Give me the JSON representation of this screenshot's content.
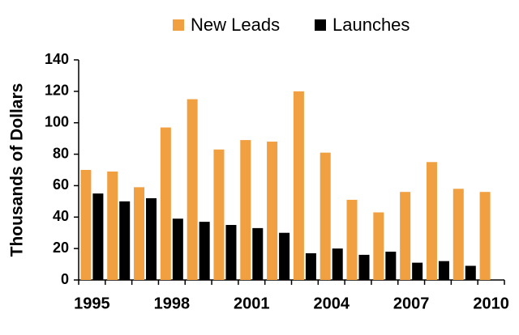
{
  "chart_data": {
    "type": "bar",
    "ylabel": "Thousands of Dollars",
    "categories": [
      "1995",
      null,
      null,
      "1998",
      null,
      null,
      "2001",
      null,
      null,
      "2004",
      null,
      null,
      "2007",
      null,
      null,
      "2010"
    ],
    "series": [
      {
        "name": "New Leads",
        "color": "#f0a040",
        "values": [
          70,
          69,
          59,
          97,
          115,
          83,
          89,
          88,
          120,
          81,
          51,
          43,
          56,
          75,
          58,
          56
        ]
      },
      {
        "name": "Launches",
        "color": "#000000",
        "values": [
          55,
          50,
          52,
          39,
          37,
          35,
          33,
          30,
          17,
          20,
          16,
          18,
          11,
          12,
          9,
          null
        ]
      }
    ],
    "ylim": [
      0,
      140
    ],
    "yticks": [
      0,
      20,
      40,
      60,
      80,
      100,
      120,
      140
    ],
    "grid": false,
    "legend": "top"
  }
}
